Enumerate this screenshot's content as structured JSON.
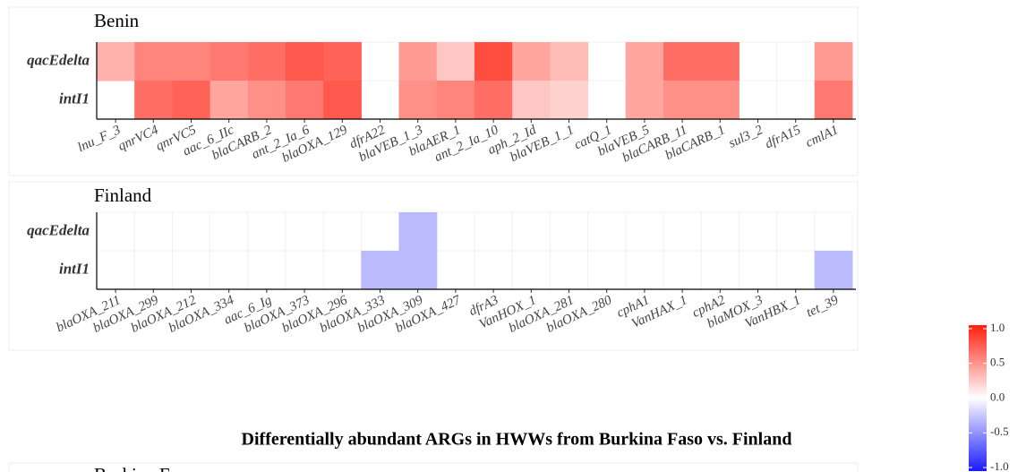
{
  "title": "Differentially abundant ARGs in HWWs from Burkina Faso vs. Finland",
  "next_panel_title": "Burkina Faso",
  "colorbar": {
    "lim": [
      -1,
      1
    ],
    "ticks": [
      {
        "value": 1,
        "label": "1.0"
      },
      0.5,
      {
        "value": 0,
        "label": "0.0"
      },
      -0.5,
      {
        "value": -1,
        "label": "-1.0"
      }
    ],
    "low": "#1a1aff",
    "mid": "#ffffff",
    "high": "#ff2010"
  },
  "chart_data": [
    {
      "type": "heatmap",
      "title": "Benin",
      "rows": [
        "qacEdelta",
        "intI1"
      ],
      "columns": [
        "lnu_F_3",
        "qnrVC4",
        "qnrVC5",
        "aac_6_IIc",
        "blaCARB_2",
        "ant_2_Ia_6",
        "blaOXA_129",
        "dfrA22",
        "blaVEB_1_3",
        "blaAER_1",
        "ant_2_Ia_10",
        "aph_2_Id",
        "blaVEB_1_1",
        "catQ_1",
        "blaVEB_5",
        "blaCARB_11",
        "blaCARB_1",
        "sul3_2",
        "dfrA15",
        "cmlA1"
      ],
      "values": [
        [
          0.35,
          0.55,
          0.55,
          0.6,
          0.65,
          0.75,
          0.7,
          null,
          0.45,
          0.25,
          0.8,
          0.4,
          0.3,
          null,
          0.4,
          0.65,
          0.65,
          null,
          null,
          0.45
        ],
        [
          null,
          0.65,
          0.7,
          0.4,
          0.5,
          0.6,
          0.75,
          null,
          0.5,
          0.55,
          0.65,
          0.25,
          0.2,
          null,
          0.4,
          0.5,
          0.5,
          null,
          null,
          0.6
        ]
      ]
    },
    {
      "type": "heatmap",
      "title": "Finland",
      "rows": [
        "qacEdelta",
        "intI1"
      ],
      "columns": [
        "blaOXA_211",
        "blaOXA_299",
        "blaOXA_212",
        "blaOXA_334",
        "aac_6_Ig",
        "blaOXA_373",
        "blaOXA_296",
        "blaOXA_333",
        "blaOXA_309",
        "blaOXA_427",
        "dfrA3",
        "VanHOX_1",
        "blaOXA_281",
        "blaOXA_280",
        "cphA1",
        "VanHAX_1",
        "cphA2",
        "blaMOX_3",
        "VanHBX_1",
        "tet_39"
      ],
      "values": [
        [
          null,
          null,
          null,
          null,
          null,
          null,
          null,
          null,
          -0.3,
          null,
          null,
          null,
          null,
          null,
          null,
          null,
          null,
          null,
          null,
          null
        ],
        [
          null,
          null,
          null,
          null,
          null,
          null,
          null,
          -0.3,
          -0.3,
          null,
          null,
          null,
          null,
          null,
          null,
          null,
          null,
          null,
          null,
          -0.3
        ]
      ]
    }
  ]
}
